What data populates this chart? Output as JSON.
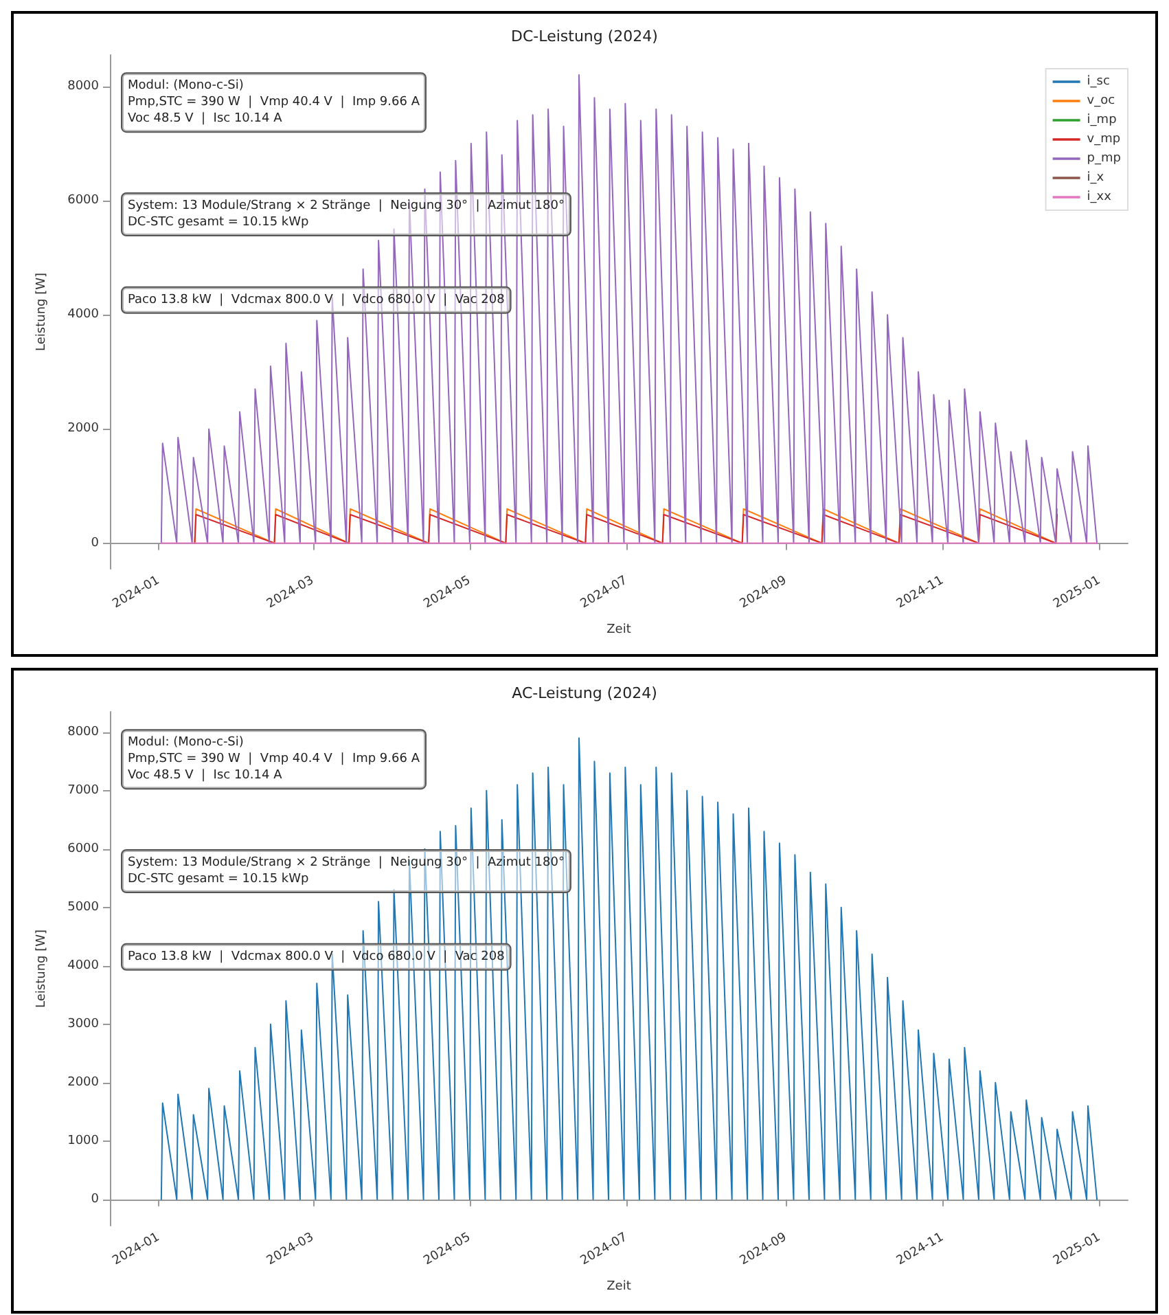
{
  "chart_data": [
    {
      "type": "line",
      "title": "DC-Leistung (2024)",
      "xlabel": "Zeit",
      "ylabel": "Leistung [W]",
      "legend": "top right",
      "grid": false,
      "marker": "none",
      "line_style": "solid",
      "xlim": [
        "2023-12-13",
        "2025-01-12"
      ],
      "xticks": [
        "2024-01",
        "2024-03",
        "2024-05",
        "2024-07",
        "2024-09",
        "2024-11",
        "2025-01"
      ],
      "ylim": [
        -450,
        8550
      ],
      "yticks": [
        0,
        2000,
        4000,
        6000,
        8000
      ],
      "annotations": [
        "Modul: (Mono-c-Si)\nPmp,STC = 390 W  |  Vmp 40.4 V  |  Imp 9.66 A\nVoc 48.5 V  |  Isc 10.14 A",
        "System: 13 Module/Strang × 2 Stränge  |  Neigung 30°  |  Azimut 180°\nDC-STC gesamt = 10.15 kWp",
        "Paco 13.8 kW  |  Vdcmax 800.0 V  |  Vdco 680.0 V  |  Vac 208"
      ],
      "x": [
        "2024-01-02T00:00",
        "2024-01-02T12:00",
        "2024-01-08T00:00",
        "2024-01-08T12:00",
        "2024-01-14T00:00",
        "2024-01-14T12:00",
        "2024-01-20T00:00",
        "2024-01-20T12:00",
        "2024-01-26T00:00",
        "2024-01-26T12:00",
        "2024-02-01T00:00",
        "2024-02-01T12:00",
        "2024-02-07T00:00",
        "2024-02-07T12:00",
        "2024-02-13T00:00",
        "2024-02-13T12:00",
        "2024-02-19T00:00",
        "2024-02-19T12:00",
        "2024-02-25T00:00",
        "2024-02-25T12:00",
        "2024-03-02T00:00",
        "2024-03-02T12:00",
        "2024-03-08T00:00",
        "2024-03-08T12:00",
        "2024-03-14T00:00",
        "2024-03-14T12:00",
        "2024-03-20T00:00",
        "2024-03-20T12:00",
        "2024-03-26T00:00",
        "2024-03-26T12:00",
        "2024-04-01T00:00",
        "2024-04-01T12:00",
        "2024-04-07T00:00",
        "2024-04-07T12:00",
        "2024-04-13T00:00",
        "2024-04-13T12:00",
        "2024-04-19T00:00",
        "2024-04-19T12:00",
        "2024-04-25T00:00",
        "2024-04-25T12:00",
        "2024-05-01T00:00",
        "2024-05-01T12:00",
        "2024-05-07T00:00",
        "2024-05-07T12:00",
        "2024-05-13T00:00",
        "2024-05-13T12:00",
        "2024-05-19T00:00",
        "2024-05-19T12:00",
        "2024-05-25T00:00",
        "2024-05-25T12:00",
        "2024-05-31T00:00",
        "2024-05-31T12:00",
        "2024-06-06T00:00",
        "2024-06-06T12:00",
        "2024-06-12T00:00",
        "2024-06-12T12:00",
        "2024-06-18T00:00",
        "2024-06-18T12:00",
        "2024-06-24T00:00",
        "2024-06-24T12:00",
        "2024-06-30T00:00",
        "2024-06-30T12:00",
        "2024-07-06T00:00",
        "2024-07-06T12:00",
        "2024-07-12T00:00",
        "2024-07-12T12:00",
        "2024-07-18T00:00",
        "2024-07-18T12:00",
        "2024-07-24T00:00",
        "2024-07-24T12:00",
        "2024-07-30T00:00",
        "2024-07-30T12:00",
        "2024-08-05T00:00",
        "2024-08-05T12:00",
        "2024-08-11T00:00",
        "2024-08-11T12:00",
        "2024-08-17T00:00",
        "2024-08-17T12:00",
        "2024-08-23T00:00",
        "2024-08-23T12:00",
        "2024-08-29T00:00",
        "2024-08-29T12:00",
        "2024-09-04T00:00",
        "2024-09-04T12:00",
        "2024-09-10T00:00",
        "2024-09-10T12:00",
        "2024-09-16T00:00",
        "2024-09-16T12:00",
        "2024-09-22T00:00",
        "2024-09-22T12:00",
        "2024-09-28T00:00",
        "2024-09-28T12:00",
        "2024-10-04T00:00",
        "2024-10-04T12:00",
        "2024-10-10T00:00",
        "2024-10-10T12:00",
        "2024-10-16T00:00",
        "2024-10-16T12:00",
        "2024-10-22T00:00",
        "2024-10-22T12:00",
        "2024-10-28T00:00",
        "2024-10-28T12:00",
        "2024-11-03T00:00",
        "2024-11-03T12:00",
        "2024-11-09T00:00",
        "2024-11-09T12:00",
        "2024-11-15T00:00",
        "2024-11-15T12:00",
        "2024-11-21T00:00",
        "2024-11-21T12:00",
        "2024-11-27T00:00",
        "2024-11-27T12:00",
        "2024-12-03T00:00",
        "2024-12-03T12:00",
        "2024-12-09T00:00",
        "2024-12-09T12:00",
        "2024-12-15T00:00",
        "2024-12-15T12:00",
        "2024-12-21T00:00",
        "2024-12-21T12:00",
        "2024-12-27T00:00",
        "2024-12-27T12:00",
        "2024-12-31T00:00"
      ],
      "series": [
        {
          "name": "i_sc",
          "color": "#1f77b4",
          "values": [
            null,
            null,
            null,
            null,
            null,
            null,
            null,
            null,
            null,
            null,
            null,
            null,
            null,
            null,
            null,
            null,
            null,
            null,
            null,
            null,
            null,
            null,
            null,
            null,
            null,
            null,
            null,
            null,
            null,
            null,
            null,
            null,
            null,
            null,
            null,
            null,
            null,
            null,
            null,
            null,
            null,
            null,
            null,
            null,
            null,
            null,
            null,
            null,
            null,
            null,
            null,
            null,
            null,
            null,
            null,
            null,
            null,
            null,
            null,
            null,
            null,
            null,
            null,
            null,
            null,
            null,
            null,
            null,
            null,
            null,
            null,
            null,
            null,
            null,
            null,
            null,
            null,
            null,
            null,
            null,
            null,
            null,
            null,
            null,
            null,
            null,
            null,
            null,
            null,
            null,
            null,
            null,
            null,
            null,
            null,
            null,
            null,
            null,
            null,
            null,
            null,
            null,
            null,
            null,
            null,
            null,
            null,
            null,
            null,
            null,
            null,
            null,
            null,
            null,
            null,
            null,
            null,
            null,
            null,
            null,
            null,
            null,
            null
          ]
        },
        {
          "name": "v_oc",
          "color": "#ff7f0e",
          "x": [
            "2024-01-15T00:00",
            "2024-01-15T12:00",
            "2024-02-15T00:00",
            "2024-02-15T12:00",
            "2024-03-15T00:00",
            "2024-03-15T12:00",
            "2024-04-15T00:00",
            "2024-04-15T12:00",
            "2024-05-15T00:00",
            "2024-05-15T12:00",
            "2024-06-15T00:00",
            "2024-06-15T12:00",
            "2024-07-15T00:00",
            "2024-07-15T12:00",
            "2024-08-15T00:00",
            "2024-08-15T12:00",
            "2024-09-15T00:00",
            "2024-09-15T12:00",
            "2024-10-15T00:00",
            "2024-10-15T12:00",
            "2024-11-15T00:00",
            "2024-11-15T12:00",
            "2024-12-15T00:00",
            "2024-12-15T12:00"
          ],
          "values": [
            0,
            600,
            0,
            600,
            0,
            600,
            0,
            600,
            0,
            600,
            0,
            600,
            0,
            600,
            0,
            600,
            0,
            600,
            0,
            600,
            0,
            600,
            0,
            600
          ]
        },
        {
          "name": "i_mp",
          "color": "#2ca02c",
          "values": [
            null,
            null,
            null,
            null,
            null,
            null,
            null,
            null,
            null,
            null,
            null,
            null,
            null,
            null,
            null,
            null,
            null,
            null,
            null,
            null,
            null,
            null,
            null,
            null,
            null,
            null,
            null,
            null,
            null,
            null,
            null,
            null,
            null,
            null,
            null,
            null,
            null,
            null,
            null,
            null,
            null,
            null,
            null,
            null,
            null,
            null,
            null,
            null,
            null,
            null,
            null,
            null,
            null,
            null,
            null,
            null,
            null,
            null,
            null,
            null,
            null,
            null,
            null,
            null,
            null,
            null,
            null,
            null,
            null,
            null,
            null,
            null,
            null,
            null,
            null,
            null,
            null,
            null,
            null,
            null,
            null,
            null,
            null,
            null,
            null,
            null,
            null,
            null,
            null,
            null,
            null,
            null,
            null,
            null,
            null,
            null,
            null,
            null,
            null,
            null,
            null,
            null,
            null,
            null,
            null,
            null,
            null,
            null,
            null,
            null,
            null,
            null,
            null,
            null,
            null,
            null,
            null,
            null,
            null,
            null,
            null,
            null,
            null
          ]
        },
        {
          "name": "v_mp",
          "color": "#d62728",
          "x": [
            "2024-01-15T00:00",
            "2024-01-15T12:00",
            "2024-02-15T00:00",
            "2024-02-15T12:00",
            "2024-03-15T00:00",
            "2024-03-15T12:00",
            "2024-04-15T00:00",
            "2024-04-15T12:00",
            "2024-05-15T00:00",
            "2024-05-15T12:00",
            "2024-06-15T00:00",
            "2024-06-15T12:00",
            "2024-07-15T00:00",
            "2024-07-15T12:00",
            "2024-08-15T00:00",
            "2024-08-15T12:00",
            "2024-09-15T00:00",
            "2024-09-15T12:00",
            "2024-10-15T00:00",
            "2024-10-15T12:00",
            "2024-11-15T00:00",
            "2024-11-15T12:00",
            "2024-12-15T00:00",
            "2024-12-15T12:00"
          ],
          "values": [
            0,
            500,
            0,
            500,
            0,
            500,
            0,
            500,
            0,
            500,
            0,
            500,
            0,
            500,
            0,
            500,
            0,
            500,
            0,
            500,
            0,
            500,
            0,
            500
          ]
        },
        {
          "name": "p_mp",
          "color": "#9467bd",
          "values": [
            0,
            1750,
            0,
            1850,
            0,
            1500,
            0,
            2000,
            0,
            1700,
            0,
            2300,
            0,
            2700,
            0,
            3100,
            0,
            3500,
            0,
            3000,
            0,
            3900,
            0,
            4300,
            0,
            3600,
            0,
            4800,
            0,
            5300,
            0,
            5500,
            0,
            6000,
            0,
            6200,
            0,
            6500,
            0,
            6700,
            0,
            7000,
            0,
            7200,
            0,
            6800,
            0,
            7400,
            0,
            7500,
            0,
            7600,
            0,
            7300,
            0,
            8200,
            0,
            7800,
            0,
            7600,
            0,
            7700,
            0,
            7400,
            0,
            7600,
            0,
            7500,
            0,
            7300,
            0,
            7200,
            0,
            7100,
            0,
            6900,
            0,
            7000,
            0,
            6600,
            0,
            6400,
            0,
            6200,
            0,
            5800,
            0,
            5600,
            0,
            5200,
            0,
            4800,
            0,
            4400,
            0,
            4000,
            0,
            3600,
            0,
            3000,
            0,
            2600,
            0,
            2500,
            0,
            2700,
            0,
            2300,
            0,
            2100,
            0,
            1600,
            0,
            1800,
            0,
            1500,
            0,
            1300,
            0,
            1600,
            0,
            1700,
            0
          ]
        },
        {
          "name": "i_x",
          "color": "#8c564b",
          "values": [
            null,
            null,
            null,
            null,
            null,
            null,
            null,
            null,
            null,
            null,
            null,
            null,
            null,
            null,
            null,
            null,
            null,
            null,
            null,
            null,
            null,
            null,
            null,
            null,
            null,
            null,
            null,
            null,
            null,
            null,
            null,
            null,
            null,
            null,
            null,
            null,
            null,
            null,
            null,
            null,
            null,
            null,
            null,
            null,
            null,
            null,
            null,
            null,
            null,
            null,
            null,
            null,
            null,
            null,
            null,
            null,
            null,
            null,
            null,
            null,
            null,
            null,
            null,
            null,
            null,
            null,
            null,
            null,
            null,
            null,
            null,
            null,
            null,
            null,
            null,
            null,
            null,
            null,
            null,
            null,
            null,
            null,
            null,
            null,
            null,
            null,
            null,
            null,
            null,
            null,
            null,
            null,
            null,
            null,
            null,
            null,
            null,
            null,
            null,
            null,
            null,
            null,
            null,
            null,
            null,
            null,
            null,
            null,
            null,
            null,
            null,
            null,
            null,
            null,
            null,
            null,
            null,
            null,
            null,
            null,
            null,
            null,
            null
          ]
        },
        {
          "name": "i_xx",
          "color": "#e377c2",
          "x": [
            "2024-01-02T00:00",
            "2024-12-31T00:00"
          ],
          "values": [
            0,
            0
          ]
        }
      ]
    },
    {
      "type": "line",
      "title": "AC-Leistung (2024)",
      "xlabel": "Zeit",
      "ylabel": "Leistung [W]",
      "grid": false,
      "marker": "none",
      "line_style": "solid",
      "xlim": [
        "2023-12-13",
        "2025-01-12"
      ],
      "xticks": [
        "2024-01",
        "2024-03",
        "2024-05",
        "2024-07",
        "2024-09",
        "2024-11",
        "2025-01"
      ],
      "ylim": [
        -450,
        8350
      ],
      "yticks": [
        0,
        1000,
        2000,
        3000,
        4000,
        5000,
        6000,
        7000,
        8000
      ],
      "annotations": [
        "Modul: (Mono-c-Si)\nPmp,STC = 390 W  |  Vmp 40.4 V  |  Imp 9.66 A\nVoc 48.5 V  |  Isc 10.14 A",
        "System: 13 Module/Strang × 2 Stränge  |  Neigung 30°  |  Azimut 180°\nDC-STC gesamt = 10.15 kWp",
        "Paco 13.8 kW  |  Vdcmax 800.0 V  |  Vdco 680.0 V  |  Vac 208"
      ],
      "x": [
        "2024-01-02T00:00",
        "2024-01-02T12:00",
        "2024-01-08T00:00",
        "2024-01-08T12:00",
        "2024-01-14T00:00",
        "2024-01-14T12:00",
        "2024-01-20T00:00",
        "2024-01-20T12:00",
        "2024-01-26T00:00",
        "2024-01-26T12:00",
        "2024-02-01T00:00",
        "2024-02-01T12:00",
        "2024-02-07T00:00",
        "2024-02-07T12:00",
        "2024-02-13T00:00",
        "2024-02-13T12:00",
        "2024-02-19T00:00",
        "2024-02-19T12:00",
        "2024-02-25T00:00",
        "2024-02-25T12:00",
        "2024-03-02T00:00",
        "2024-03-02T12:00",
        "2024-03-08T00:00",
        "2024-03-08T12:00",
        "2024-03-14T00:00",
        "2024-03-14T12:00",
        "2024-03-20T00:00",
        "2024-03-20T12:00",
        "2024-03-26T00:00",
        "2024-03-26T12:00",
        "2024-04-01T00:00",
        "2024-04-01T12:00",
        "2024-04-07T00:00",
        "2024-04-07T12:00",
        "2024-04-13T00:00",
        "2024-04-13T12:00",
        "2024-04-19T00:00",
        "2024-04-19T12:00",
        "2024-04-25T00:00",
        "2024-04-25T12:00",
        "2024-05-01T00:00",
        "2024-05-01T12:00",
        "2024-05-07T00:00",
        "2024-05-07T12:00",
        "2024-05-13T00:00",
        "2024-05-13T12:00",
        "2024-05-19T00:00",
        "2024-05-19T12:00",
        "2024-05-25T00:00",
        "2024-05-25T12:00",
        "2024-05-31T00:00",
        "2024-05-31T12:00",
        "2024-06-06T00:00",
        "2024-06-06T12:00",
        "2024-06-12T00:00",
        "2024-06-12T12:00",
        "2024-06-18T00:00",
        "2024-06-18T12:00",
        "2024-06-24T00:00",
        "2024-06-24T12:00",
        "2024-06-30T00:00",
        "2024-06-30T12:00",
        "2024-07-06T00:00",
        "2024-07-06T12:00",
        "2024-07-12T00:00",
        "2024-07-12T12:00",
        "2024-07-18T00:00",
        "2024-07-18T12:00",
        "2024-07-24T00:00",
        "2024-07-24T12:00",
        "2024-07-30T00:00",
        "2024-07-30T12:00",
        "2024-08-05T00:00",
        "2024-08-05T12:00",
        "2024-08-11T00:00",
        "2024-08-11T12:00",
        "2024-08-17T00:00",
        "2024-08-17T12:00",
        "2024-08-23T00:00",
        "2024-08-23T12:00",
        "2024-08-29T00:00",
        "2024-08-29T12:00",
        "2024-09-04T00:00",
        "2024-09-04T12:00",
        "2024-09-10T00:00",
        "2024-09-10T12:00",
        "2024-09-16T00:00",
        "2024-09-16T12:00",
        "2024-09-22T00:00",
        "2024-09-22T12:00",
        "2024-09-28T00:00",
        "2024-09-28T12:00",
        "2024-10-04T00:00",
        "2024-10-04T12:00",
        "2024-10-10T00:00",
        "2024-10-10T12:00",
        "2024-10-16T00:00",
        "2024-10-16T12:00",
        "2024-10-22T00:00",
        "2024-10-22T12:00",
        "2024-10-28T00:00",
        "2024-10-28T12:00",
        "2024-11-03T00:00",
        "2024-11-03T12:00",
        "2024-11-09T00:00",
        "2024-11-09T12:00",
        "2024-11-15T00:00",
        "2024-11-15T12:00",
        "2024-11-21T00:00",
        "2024-11-21T12:00",
        "2024-11-27T00:00",
        "2024-11-27T12:00",
        "2024-12-03T00:00",
        "2024-12-03T12:00",
        "2024-12-09T00:00",
        "2024-12-09T12:00",
        "2024-12-15T00:00",
        "2024-12-15T12:00",
        "2024-12-21T00:00",
        "2024-12-21T12:00",
        "2024-12-27T00:00",
        "2024-12-27T12:00",
        "2024-12-31T00:00"
      ],
      "series": [
        {
          "color": "#1f77b4",
          "values": [
            0,
            1650,
            0,
            1800,
            0,
            1450,
            0,
            1900,
            0,
            1600,
            0,
            2200,
            0,
            2600,
            0,
            3000,
            0,
            3400,
            0,
            2900,
            0,
            3700,
            0,
            4200,
            0,
            3500,
            0,
            4600,
            0,
            5100,
            0,
            5300,
            0,
            5800,
            0,
            6000,
            0,
            6300,
            0,
            6400,
            0,
            6700,
            0,
            7000,
            0,
            6500,
            0,
            7100,
            0,
            7300,
            0,
            7400,
            0,
            7100,
            0,
            7900,
            0,
            7500,
            0,
            7300,
            0,
            7400,
            0,
            7100,
            0,
            7400,
            0,
            7300,
            0,
            7000,
            0,
            6900,
            0,
            6800,
            0,
            6600,
            0,
            6700,
            0,
            6300,
            0,
            6100,
            0,
            5900,
            0,
            5600,
            0,
            5400,
            0,
            5000,
            0,
            4600,
            0,
            4200,
            0,
            3800,
            0,
            3400,
            0,
            2900,
            0,
            2500,
            0,
            2400,
            0,
            2600,
            0,
            2200,
            0,
            2000,
            0,
            1500,
            0,
            1700,
            0,
            1400,
            0,
            1200,
            0,
            1500,
            0,
            1600,
            0
          ]
        }
      ]
    }
  ]
}
